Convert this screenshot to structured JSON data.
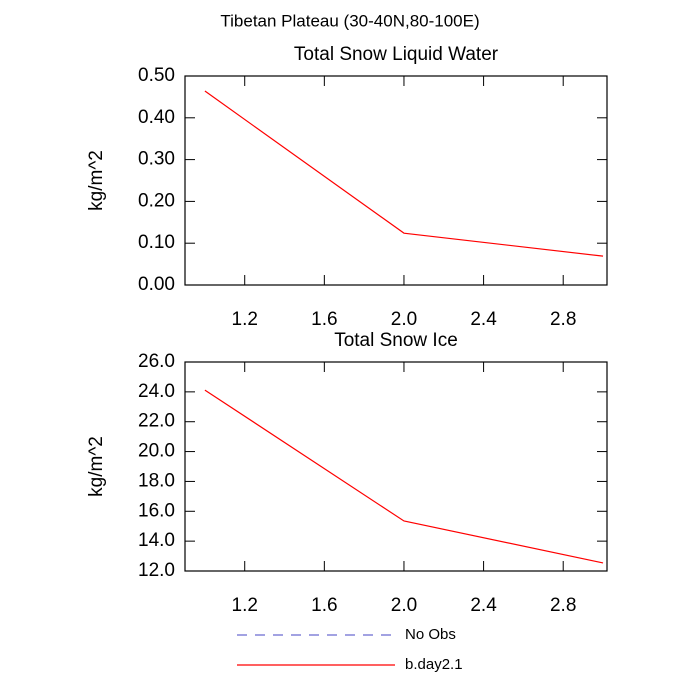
{
  "title": "Tibetan Plateau (30-40N,80-100E)",
  "legend": [
    {
      "name": "No Obs",
      "color": "#6a6ad0",
      "dashed": true
    },
    {
      "name": "b.day2.1",
      "color": "#ff0000",
      "dashed": false
    }
  ],
  "chart_data": [
    {
      "type": "line",
      "title": "Total Snow Liquid Water",
      "y_label": "kg/m^2",
      "x": [
        1,
        2,
        3
      ],
      "values": [
        0.464,
        0.124,
        0.069
      ],
      "color": "#ff0000",
      "xlim": [
        0.9,
        3.02
      ],
      "xticks": [
        1.2,
        1.6,
        {
          "value": 2,
          "label": "2.0"
        },
        2.4,
        2.8
      ],
      "ylim": [
        0,
        0.5
      ],
      "yticks": [
        {
          "value": 0,
          "label": "0.00"
        },
        {
          "value": 0.1,
          "label": "0.10"
        },
        {
          "value": 0.2,
          "label": "0.20"
        },
        {
          "value": 0.3,
          "label": "0.30"
        },
        {
          "value": 0.4,
          "label": "0.40"
        },
        {
          "value": 0.5,
          "label": "0.50"
        }
      ]
    },
    {
      "type": "line",
      "title": "Total Snow Ice",
      "y_label": "kg/m^2",
      "x": [
        1,
        2,
        3
      ],
      "values": [
        24.12,
        15.35,
        12.54
      ],
      "color": "#ff0000",
      "xlim": [
        0.9,
        3.02
      ],
      "xticks": [
        1.2,
        1.6,
        {
          "value": 2,
          "label": "2.0"
        },
        2.4,
        2.8
      ],
      "ylim": [
        12,
        26
      ],
      "yticks": [
        {
          "value": 12,
          "label": "12.0"
        },
        {
          "value": 14,
          "label": "14.0"
        },
        {
          "value": 16,
          "label": "16.0"
        },
        {
          "value": 18,
          "label": "18.0"
        },
        {
          "value": 20,
          "label": "20.0"
        },
        {
          "value": 22,
          "label": "22.0"
        },
        {
          "value": 24,
          "label": "24.0"
        },
        {
          "value": 26,
          "label": "26.0"
        }
      ]
    }
  ]
}
